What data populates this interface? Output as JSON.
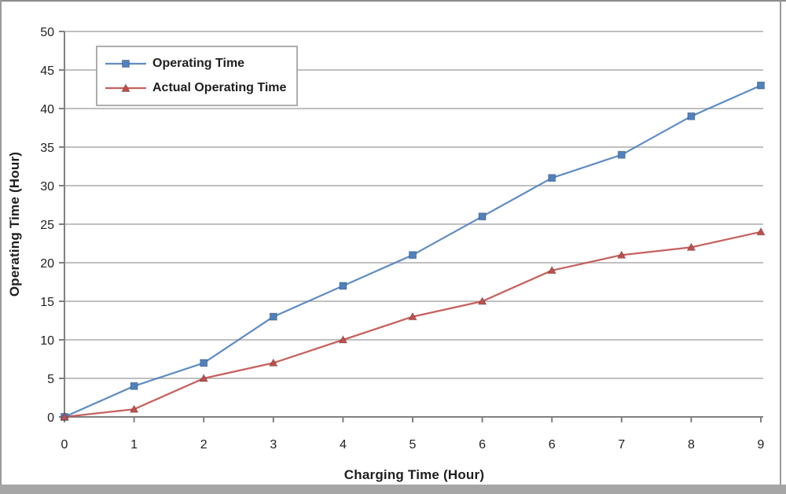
{
  "window": {
    "background": "#FFFFFF",
    "border_color": "#8C8C8C",
    "bottom_bar_color": "#A6A6A6"
  },
  "chart_data": {
    "type": "line",
    "title": "",
    "xlabel": "Charging Time (Hour)",
    "ylabel": "Operating Time (Hour)",
    "categories": [
      "0",
      "1",
      "2",
      "3",
      "4",
      "5",
      "6",
      "6",
      "7",
      "8",
      "9"
    ],
    "series": [
      {
        "name": "Operating Time",
        "color": "#4F81BD",
        "marker": "square",
        "values": [
          0,
          4,
          7,
          13,
          17,
          21,
          26,
          31,
          34,
          39,
          43
        ]
      },
      {
        "name": "Actual Operating Time",
        "color": "#C0504D",
        "marker": "triangle",
        "values": [
          0,
          1,
          5,
          7,
          10,
          13,
          15,
          19,
          21,
          22,
          24
        ]
      }
    ],
    "ylim": [
      0,
      50
    ],
    "ytick_step": 5,
    "grid": "horizontal",
    "gridline_color": "#ABABAB",
    "axis_color": "#808080",
    "text_color": "#1F1F1F",
    "legend_position": "top-left",
    "legend_border_color": "#ADADAD"
  }
}
